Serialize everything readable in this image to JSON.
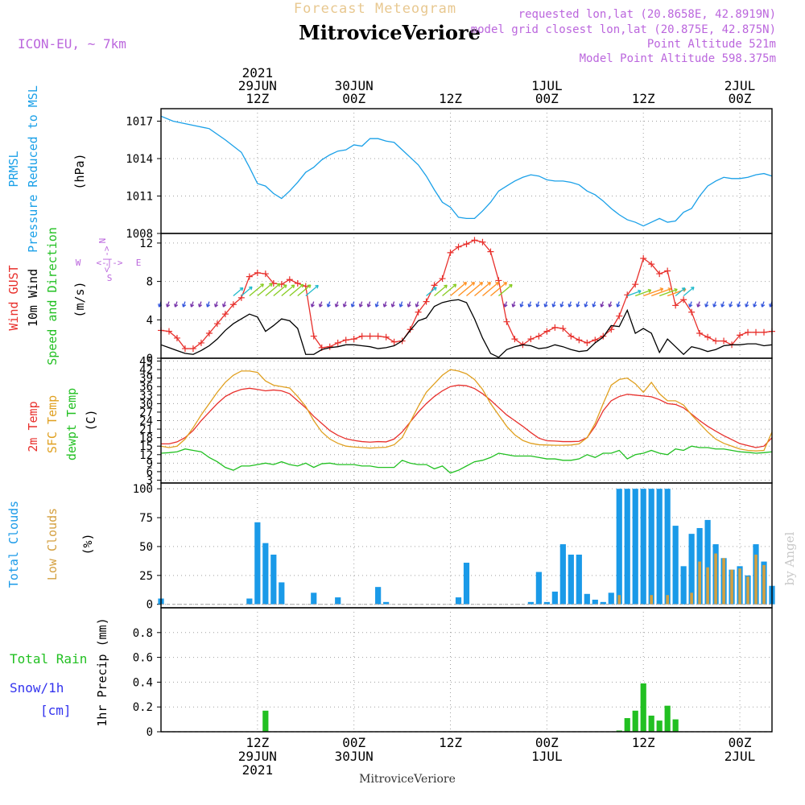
{
  "header": {
    "top_title": "Forecast Meteogram",
    "station_title": "MitroviceVeriore",
    "model": "ICON-EU, ~ 7km",
    "requested": "requested lon,lat (20.8658E, 42.8919N)",
    "closest": "model grid closest lon,lat (20.875E, 42.875N)",
    "point_alt": "Point Altitude 521m",
    "model_alt": "Model Point Altitude 598.375m",
    "watermark": "by Angel",
    "footer_station": "MitroviceVeriore"
  },
  "colors": {
    "pressure": "#1aa0e8",
    "gust": "#e8302c",
    "wind": "#000000",
    "temp2m": "#e8302c",
    "sfc": "#e0a020",
    "dewpt": "#22c022",
    "total_clouds": "#1a9ae8",
    "low_clouds": "#d4a040",
    "rain": "#22c022",
    "snow": "#3333ee",
    "purple": "#bb66dd"
  },
  "time_axis": {
    "top": [
      {
        "x": 12,
        "lines": [
          "2021",
          "29JUN",
          "12Z"
        ]
      },
      {
        "x": 24,
        "lines": [
          "30JUN",
          "00Z"
        ]
      },
      {
        "x": 36,
        "lines": [
          "12Z"
        ]
      },
      {
        "x": 48,
        "lines": [
          "1JUL",
          "00Z"
        ]
      },
      {
        "x": 60,
        "lines": [
          "12Z"
        ]
      },
      {
        "x": 72,
        "lines": [
          "2JUL",
          "00Z"
        ]
      }
    ],
    "bottom": [
      {
        "x": 12,
        "lines": [
          "12Z",
          "29JUN",
          "2021"
        ]
      },
      {
        "x": 24,
        "lines": [
          "00Z",
          "30JUN"
        ]
      },
      {
        "x": 36,
        "lines": [
          "12Z"
        ]
      },
      {
        "x": 48,
        "lines": [
          "00Z",
          "1JUL"
        ]
      },
      {
        "x": 60,
        "lines": [
          "12Z"
        ]
      },
      {
        "x": 72,
        "lines": [
          "00Z",
          "2JUL"
        ]
      }
    ]
  },
  "labels": {
    "p1": [
      {
        "text": "PRMSL",
        "color": "pressure"
      },
      {
        "text": "Pressure Reduced to MSL",
        "color": "pressure"
      },
      {
        "text": "(hPa)",
        "color": "wind"
      }
    ],
    "p2": [
      {
        "text": "Wind GUST",
        "color": "gust"
      },
      {
        "text": "10m Wind",
        "color": "wind"
      },
      {
        "text": "(m/s)",
        "color": "wind"
      },
      {
        "text": "Speed and Direction",
        "color": "dewpt"
      }
    ],
    "p3": [
      {
        "text": "2m Temp",
        "color": "temp2m"
      },
      {
        "text": "SFC Temp",
        "color": "sfc"
      },
      {
        "text": "dewpt Temp",
        "color": "dewpt"
      },
      {
        "text": "(C)",
        "color": "wind"
      }
    ],
    "p4": [
      {
        "text": "Total Clouds",
        "color": "total_clouds"
      },
      {
        "text": "Low Clouds",
        "color": "low_clouds"
      },
      {
        "text": "(%)",
        "color": "wind"
      }
    ],
    "p5_left": [
      {
        "text": "Total  Rain",
        "color": "rain"
      },
      {
        "text": "Snow/1h",
        "color": "snow"
      },
      {
        "text": "[cm]",
        "color": "snow"
      }
    ],
    "p5_axis": "1hr Precip (mm)",
    "compass": {
      "n": "N",
      "s": "S",
      "w": "W",
      "e": "E"
    }
  },
  "chart_data": [
    {
      "type": "line",
      "panel": "pressure",
      "ylabel": "(hPa)",
      "ylim": [
        1008,
        1018
      ],
      "yticks": [
        "1008",
        "1011",
        "1014",
        "1017"
      ],
      "x": [
        0,
        1.5,
        3,
        6,
        8,
        10,
        11,
        12,
        13,
        14,
        15,
        16,
        17,
        18,
        19,
        20,
        21,
        22,
        23,
        24,
        25,
        26,
        27,
        28,
        29,
        30,
        31,
        32,
        33,
        34,
        35,
        36,
        37,
        38,
        39,
        40,
        41,
        42,
        43,
        44,
        45,
        46,
        47,
        48,
        49,
        50,
        51,
        52,
        53,
        54,
        55,
        56,
        57,
        58,
        59,
        60,
        61,
        62,
        63,
        64,
        65,
        66,
        67,
        68,
        69,
        70,
        71,
        72,
        73,
        74,
        75,
        76
      ],
      "y": [
        1017.4,
        1017.0,
        1016.8,
        1016.4,
        1015.5,
        1014.5,
        1013.3,
        1012.0,
        1011.8,
        1011.2,
        1010.8,
        1011.4,
        1012.1,
        1012.9,
        1013.3,
        1013.9,
        1014.3,
        1014.6,
        1014.7,
        1015.1,
        1015.0,
        1015.6,
        1015.6,
        1015.4,
        1015.3,
        1014.7,
        1014.1,
        1013.5,
        1012.6,
        1011.5,
        1010.5,
        1010.1,
        1009.3,
        1009.2,
        1009.2,
        1009.8,
        1010.5,
        1011.4,
        1011.8,
        1012.2,
        1012.5,
        1012.7,
        1012.6,
        1012.3,
        1012.2,
        1012.2,
        1012.1,
        1011.9,
        1011.4,
        1011.1,
        1010.6,
        1010.0,
        1009.5,
        1009.1,
        1008.9,
        1008.6,
        1008.9,
        1009.2,
        1008.9,
        1009.0,
        1009.7,
        1010.0,
        1011.0,
        1011.8,
        1012.2,
        1012.5,
        1012.4,
        1012.4,
        1012.5,
        1012.7,
        1012.8,
        1012.6
      ],
      "series": [
        {
          "values_key": "y",
          "color": "pressure"
        }
      ]
    },
    {
      "type": "line",
      "panel": "wind",
      "ylabel": "(m/s)",
      "ylim": [
        0,
        13
      ],
      "yticks": [
        "0",
        "4",
        "8",
        "12"
      ],
      "x": [
        0,
        1,
        2,
        3,
        4,
        5,
        6,
        7,
        8,
        9,
        10,
        11,
        12,
        13,
        14,
        15,
        16,
        17,
        18,
        19,
        20,
        21,
        22,
        23,
        24,
        25,
        26,
        27,
        28,
        29,
        30,
        31,
        32,
        33,
        34,
        35,
        36,
        37,
        38,
        39,
        40,
        41,
        42,
        43,
        44,
        45,
        46,
        47,
        48,
        49,
        50,
        51,
        52,
        53,
        54,
        55,
        56,
        57,
        58,
        59,
        60,
        61,
        62,
        63,
        64,
        65,
        66,
        67,
        68,
        69,
        70,
        71,
        72,
        73,
        74,
        75,
        76
      ],
      "series": [
        {
          "name": "Wind GUST",
          "color": "gust",
          "markers": true,
          "values": [
            2.9,
            2.8,
            2.1,
            1.0,
            1.0,
            1.6,
            2.6,
            3.6,
            4.6,
            5.6,
            6.3,
            8.5,
            8.9,
            8.8,
            7.8,
            7.7,
            8.2,
            7.8,
            7.5,
            2.3,
            1.1,
            1.2,
            1.6,
            1.9,
            2.0,
            2.3,
            2.3,
            2.3,
            2.2,
            1.7,
            1.8,
            3.0,
            4.8,
            5.9,
            7.6,
            8.3,
            11.0,
            11.6,
            11.9,
            12.3,
            12.1,
            11.1,
            8.1,
            3.8,
            2.0,
            1.4,
            2.0,
            2.3,
            2.8,
            3.2,
            3.1,
            2.3,
            1.9,
            1.6,
            1.9,
            2.3,
            3.0,
            4.4,
            6.6,
            7.7,
            10.4,
            9.8,
            8.8,
            9.1,
            5.5,
            6.1,
            4.8,
            2.6,
            2.2,
            1.8,
            1.8,
            1.4,
            2.4,
            2.7,
            2.7,
            2.7,
            2.8
          ]
        },
        {
          "name": "10m Wind",
          "color": "wind",
          "markers": false,
          "values": [
            1.4,
            1.1,
            0.8,
            0.5,
            0.4,
            0.8,
            1.3,
            2.0,
            2.9,
            3.6,
            4.1,
            4.6,
            4.3,
            2.8,
            3.4,
            4.1,
            3.9,
            3.1,
            0.4,
            0.4,
            0.9,
            1.1,
            1.2,
            1.4,
            1.4,
            1.3,
            1.2,
            1.0,
            1.1,
            1.3,
            1.8,
            2.9,
            3.9,
            4.2,
            5.4,
            5.8,
            6.0,
            6.1,
            5.8,
            4.1,
            2.1,
            0.5,
            0.1,
            0.9,
            1.2,
            1.4,
            1.3,
            1.0,
            1.1,
            1.4,
            1.2,
            0.9,
            0.7,
            0.8,
            1.6,
            2.2,
            3.4,
            3.3,
            5.0,
            2.6,
            3.1,
            2.6,
            0.6,
            2.0,
            1.2,
            0.4,
            1.2,
            1.0,
            0.7,
            0.9,
            1.3,
            1.4,
            1.4,
            1.5,
            1.5,
            1.3,
            1.4
          ]
        }
      ]
    },
    {
      "type": "line",
      "panel": "temperature",
      "ylabel": "(C)",
      "ylim": [
        2,
        46
      ],
      "yticks": [
        "3",
        "6",
        "9",
        "12",
        "15",
        "18",
        "21",
        "24",
        "27",
        "30",
        "33",
        "36",
        "39",
        "42",
        "45"
      ],
      "x": [
        0,
        1,
        2,
        3,
        4,
        5,
        6,
        7,
        8,
        9,
        10,
        11,
        12,
        13,
        14,
        15,
        16,
        17,
        18,
        19,
        20,
        21,
        22,
        23,
        24,
        25,
        26,
        27,
        28,
        29,
        30,
        31,
        32,
        33,
        34,
        35,
        36,
        37,
        38,
        39,
        40,
        41,
        42,
        43,
        44,
        45,
        46,
        47,
        48,
        49,
        50,
        51,
        52,
        53,
        54,
        55,
        56,
        57,
        58,
        59,
        60,
        61,
        62,
        63,
        64,
        65,
        66,
        67,
        68,
        69,
        70,
        71,
        72,
        73,
        74,
        75,
        76
      ],
      "series": [
        {
          "name": "2m Temp",
          "color": "temp2m",
          "values": [
            15.8,
            15.8,
            16.5,
            18.0,
            20.5,
            24.0,
            27.0,
            30.0,
            32.5,
            34.0,
            35.0,
            35.4,
            35.0,
            34.5,
            34.8,
            34.5,
            33.5,
            31.0,
            28.5,
            25.5,
            23.0,
            20.5,
            18.8,
            17.6,
            17.0,
            16.6,
            16.4,
            16.6,
            16.5,
            17.5,
            20.0,
            23.5,
            27.0,
            30.0,
            32.5,
            34.5,
            36.0,
            36.5,
            36.3,
            35.3,
            33.5,
            31.2,
            28.6,
            26.0,
            24.0,
            22.0,
            19.8,
            17.8,
            16.9,
            16.8,
            16.6,
            16.6,
            16.7,
            18.0,
            22.0,
            27.5,
            31.0,
            32.5,
            33.3,
            33.0,
            32.7,
            32.4,
            31.4,
            30.0,
            29.7,
            28.5,
            26.3,
            24.0,
            22.0,
            20.3,
            18.7,
            17.3,
            15.9,
            15.2,
            14.5,
            15.0,
            18.0
          ]
        },
        {
          "name": "SFC Temp",
          "color": "sfc",
          "values": [
            15.0,
            14.5,
            15.0,
            17.5,
            21.5,
            26.0,
            30.0,
            34.0,
            37.5,
            40.0,
            41.5,
            41.5,
            41.0,
            38.0,
            36.5,
            36.0,
            35.5,
            32.5,
            29.0,
            24.0,
            20.0,
            17.5,
            16.0,
            15.0,
            14.7,
            14.5,
            14.3,
            14.5,
            14.6,
            15.5,
            18.0,
            23.5,
            29.0,
            34.0,
            37.0,
            40.0,
            42.0,
            41.5,
            40.5,
            38.5,
            35.0,
            30.0,
            26.0,
            22.0,
            19.0,
            17.0,
            16.0,
            15.5,
            15.4,
            15.3,
            15.3,
            15.4,
            15.8,
            18.0,
            23.0,
            30.0,
            36.5,
            38.5,
            39.0,
            37.0,
            34.0,
            37.5,
            33.5,
            31.0,
            31.0,
            29.5,
            26.0,
            23.0,
            20.0,
            17.5,
            16.0,
            15.0,
            14.0,
            13.5,
            13.3,
            13.5,
            20.0
          ]
        },
        {
          "name": "dewpt Temp",
          "color": "dewpt",
          "values": [
            12.5,
            12.7,
            13.0,
            14.0,
            13.5,
            13.0,
            11.0,
            9.5,
            7.5,
            6.5,
            8.0,
            8.0,
            8.5,
            9.0,
            8.5,
            9.5,
            8.5,
            8.0,
            9.0,
            7.5,
            8.8,
            9.0,
            8.5,
            8.5,
            8.5,
            8.0,
            8.0,
            7.5,
            7.5,
            7.5,
            10.0,
            9.0,
            8.5,
            8.5,
            7.0,
            8.0,
            5.5,
            6.5,
            8.0,
            9.5,
            10.0,
            11.0,
            12.5,
            12.0,
            11.5,
            11.5,
            11.5,
            11.0,
            10.5,
            10.5,
            10.0,
            10.0,
            10.5,
            12.0,
            11.0,
            12.5,
            12.5,
            13.5,
            10.5,
            12.0,
            12.5,
            13.5,
            12.5,
            12.0,
            14.0,
            13.5,
            15.0,
            14.5,
            14.5,
            14.0,
            14.0,
            13.5,
            13.0,
            12.8,
            12.5,
            12.7,
            13.0
          ]
        }
      ]
    },
    {
      "type": "bar",
      "panel": "clouds",
      "ylabel": "(%)",
      "ylim": [
        -3,
        105
      ],
      "yticks": [
        "0",
        "25",
        "50",
        "75",
        "100"
      ],
      "x": [
        0,
        11,
        12,
        13,
        14,
        15,
        19,
        22,
        27,
        28,
        37,
        38,
        46,
        47,
        48,
        49,
        50,
        51,
        52,
        53,
        54,
        55,
        56,
        57,
        58,
        59,
        60,
        61,
        62,
        63,
        64,
        65,
        66,
        67,
        68,
        69,
        70,
        71,
        72,
        73,
        74,
        75,
        76
      ],
      "series": [
        {
          "name": "Total Clouds",
          "color": "total_clouds",
          "values": [
            5,
            5,
            71,
            53,
            43,
            19,
            10,
            6,
            15,
            2,
            6,
            36,
            2,
            28,
            2,
            11,
            52,
            43,
            43,
            9,
            4,
            2,
            10,
            100,
            100,
            100,
            100,
            100,
            100,
            100,
            68,
            33,
            61,
            66,
            73,
            52,
            40,
            30,
            33,
            25,
            52,
            37,
            16
          ]
        },
        {
          "name": "Low Clouds",
          "color": "low_clouds",
          "values": [
            0,
            0,
            0,
            0,
            0,
            0,
            0,
            0,
            0,
            0,
            0,
            0,
            0,
            0,
            0,
            0,
            0,
            0,
            0,
            0,
            0,
            0,
            0,
            8,
            0,
            0,
            0,
            8,
            0,
            8,
            0,
            0,
            10,
            37,
            32,
            44,
            40,
            30,
            31,
            24,
            43,
            34,
            0
          ]
        }
      ]
    },
    {
      "type": "bar",
      "panel": "precip",
      "ylabel": "1hr Precip (mm)",
      "ylim": [
        0,
        1.0
      ],
      "yticks": [
        "0",
        "0.2",
        "0.4",
        "0.6",
        "0.8"
      ],
      "x": [
        13,
        57,
        58,
        59,
        60,
        61,
        62,
        63,
        64
      ],
      "series": [
        {
          "name": "Total Rain",
          "color": "rain",
          "values": [
            0.17,
            0.01,
            0.11,
            0.17,
            0.39,
            0.13,
            0.09,
            0.21,
            0.1
          ]
        }
      ]
    }
  ]
}
